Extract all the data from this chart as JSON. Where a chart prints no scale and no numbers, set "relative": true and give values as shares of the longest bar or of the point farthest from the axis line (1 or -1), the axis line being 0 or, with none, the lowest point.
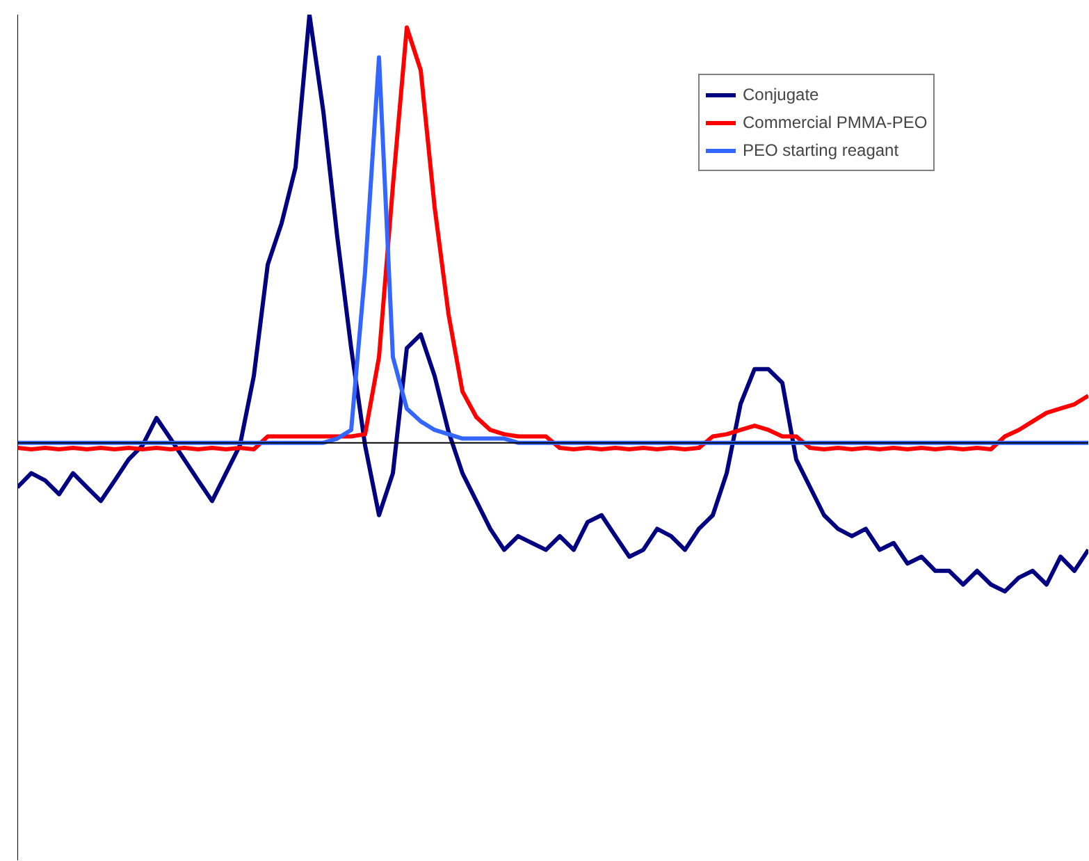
{
  "chart_data": {
    "type": "line",
    "relative": true,
    "legend": "top right",
    "grid": false,
    "categories": [
      null,
      null,
      null,
      null,
      null,
      null,
      null,
      null,
      null,
      null,
      null,
      null,
      null,
      null,
      null,
      null,
      null,
      null,
      null,
      null,
      null,
      null,
      null,
      null,
      null,
      null,
      null,
      null,
      null,
      null,
      null,
      null,
      null,
      null,
      null,
      null,
      null,
      null,
      null,
      null,
      null,
      null,
      null,
      null,
      null,
      null,
      null,
      null,
      null,
      null,
      null,
      null,
      null,
      null,
      null,
      null,
      null,
      null,
      null,
      null,
      null,
      null,
      null,
      null,
      null,
      null,
      null,
      null,
      null,
      null,
      null,
      null,
      null,
      null,
      null,
      null,
      null,
      null
    ],
    "series": [
      {
        "name": "Conjugate",
        "color": "#000080",
        "values": [
          -0.104,
          -0.071,
          -0.088,
          -0.12,
          -0.071,
          -0.104,
          -0.136,
          -0.088,
          -0.039,
          -0.006,
          0.058,
          0.01,
          -0.039,
          -0.088,
          -0.136,
          -0.071,
          -0.006,
          0.156,
          0.416,
          0.513,
          0.643,
          1.0,
          0.773,
          0.481,
          0.221,
          -0.006,
          -0.169,
          -0.071,
          0.221,
          0.253,
          0.156,
          0.026,
          -0.071,
          -0.136,
          -0.201,
          -0.25,
          -0.218,
          -0.234,
          -0.25,
          -0.218,
          -0.25,
          -0.185,
          -0.169,
          -0.218,
          -0.266,
          -0.25,
          -0.201,
          -0.218,
          -0.25,
          -0.201,
          -0.169,
          -0.071,
          0.091,
          0.172,
          0.172,
          0.14,
          -0.039,
          -0.104,
          -0.169,
          -0.201,
          -0.218,
          -0.201,
          -0.25,
          -0.234,
          -0.282,
          -0.266,
          -0.299,
          -0.299,
          -0.331,
          -0.299,
          -0.331,
          -0.347,
          -0.315,
          -0.299,
          -0.331,
          -0.266,
          -0.299,
          -0.25
        ]
      },
      {
        "name": "Commercial PMMA-PEO",
        "color": "#ff0000",
        "values": [
          -0.012,
          -0.015,
          -0.012,
          -0.015,
          -0.012,
          -0.015,
          -0.012,
          -0.015,
          -0.012,
          -0.015,
          -0.012,
          -0.015,
          -0.012,
          -0.015,
          -0.012,
          -0.015,
          -0.012,
          -0.015,
          0.015,
          0.015,
          0.015,
          0.015,
          0.015,
          0.015,
          0.015,
          0.02,
          0.2,
          0.6,
          0.97,
          0.87,
          0.55,
          0.3,
          0.12,
          0.06,
          0.03,
          0.02,
          0.015,
          0.015,
          0.015,
          -0.012,
          -0.015,
          -0.012,
          -0.015,
          -0.012,
          -0.015,
          -0.012,
          -0.015,
          -0.012,
          -0.015,
          -0.012,
          0.015,
          0.02,
          0.03,
          0.04,
          0.03,
          0.015,
          0.015,
          -0.012,
          -0.015,
          -0.012,
          -0.015,
          -0.012,
          -0.015,
          -0.012,
          -0.015,
          -0.012,
          -0.015,
          -0.012,
          -0.015,
          -0.012,
          -0.015,
          0.015,
          0.03,
          0.05,
          0.07,
          0.08,
          0.09,
          0.11
        ]
      },
      {
        "name": "PEO starting reagant",
        "color": "#3366ff",
        "values": [
          0,
          0,
          0,
          0,
          0,
          0,
          0,
          0,
          0,
          0,
          0,
          0,
          0,
          0,
          0,
          0,
          0,
          0,
          0,
          0,
          0,
          0,
          0,
          0.01,
          0.03,
          0.4,
          0.9,
          0.2,
          0.08,
          0.05,
          0.03,
          0.02,
          0.01,
          0.01,
          0.01,
          0.01,
          0,
          0,
          0,
          0,
          0,
          0,
          0,
          0,
          0,
          0,
          0,
          0,
          0,
          0,
          0,
          0,
          0,
          0,
          0,
          0,
          0,
          0,
          0,
          0,
          0,
          0,
          0,
          0,
          0,
          0,
          0,
          0,
          0,
          0,
          0,
          0,
          0,
          0,
          0,
          0,
          0,
          0
        ]
      }
    ]
  }
}
